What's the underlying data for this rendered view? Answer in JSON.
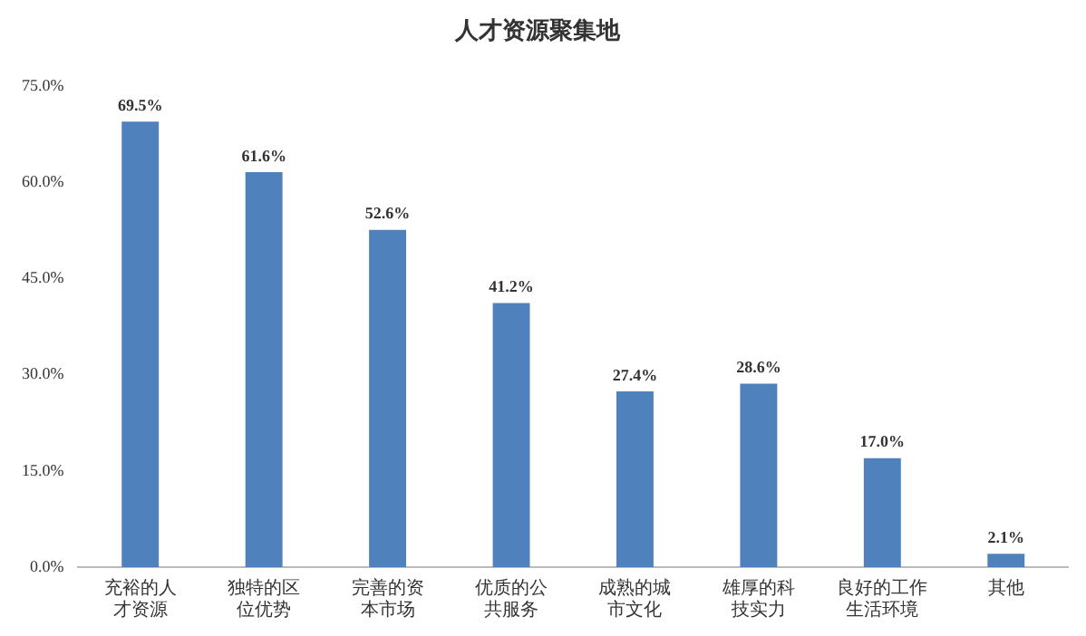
{
  "chart_data": {
    "type": "bar",
    "title": "人才资源聚集地",
    "categories": [
      "充裕的人才资源",
      "独特的区位优势",
      "完善的资本市场",
      "优质的公共服务",
      "成熟的城市文化",
      "雄厚的科技实力",
      "良好的工作生活环境",
      "其他"
    ],
    "values": [
      69.5,
      61.6,
      52.6,
      41.2,
      27.4,
      28.6,
      17.0,
      2.1
    ],
    "value_labels": [
      "69.5%",
      "61.6%",
      "52.6%",
      "41.2%",
      "27.4%",
      "28.6%",
      "17.0%",
      "2.1%"
    ],
    "color": "#4f81bd",
    "ylim": [
      0,
      75
    ],
    "yticks": [
      {
        "value": 0,
        "label": "0.0%"
      },
      {
        "value": 15,
        "label": "15.0%"
      },
      {
        "value": 30,
        "label": "30.0%"
      },
      {
        "value": 45,
        "label": "45.0%"
      },
      {
        "value": 60,
        "label": "60.0%"
      },
      {
        "value": 75,
        "label": "75.0%"
      }
    ],
    "grid": false,
    "legend": false
  }
}
